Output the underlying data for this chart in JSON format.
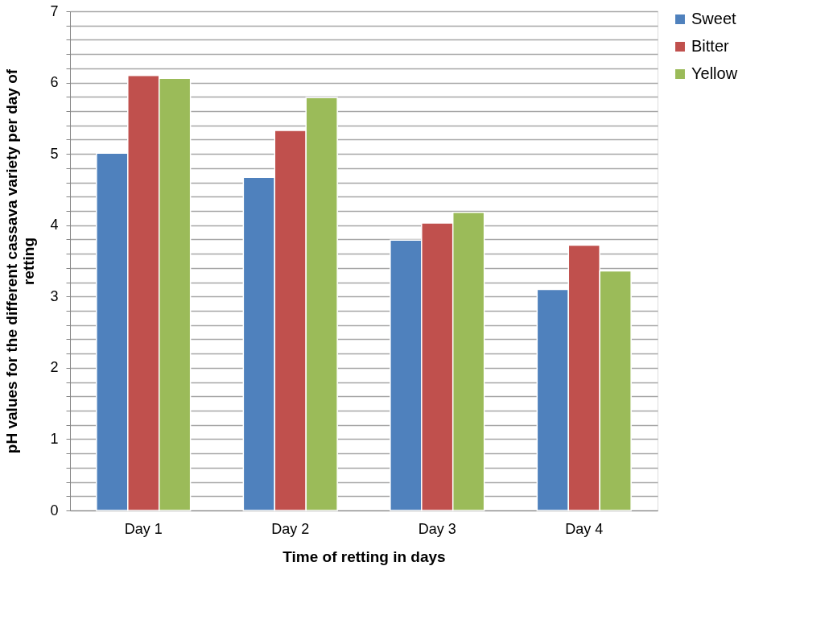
{
  "chart_data": {
    "type": "bar",
    "xlabel": "Time of retting in days",
    "ylabel": "pH values for the different cassava variety per day of retting",
    "categories": [
      "Day 1",
      "Day 2",
      "Day 3",
      "Day 4"
    ],
    "series": [
      {
        "name": "Sweet",
        "color": "#4f81bd",
        "values": [
          5.01,
          4.67,
          3.79,
          3.1
        ]
      },
      {
        "name": "Bitter",
        "color": "#c0504d",
        "values": [
          6.1,
          5.33,
          4.03,
          3.72
        ]
      },
      {
        "name": "Yellow",
        "color": "#9bbb59",
        "values": [
          6.06,
          5.79,
          4.18,
          3.36
        ]
      }
    ],
    "ylim": [
      0,
      7
    ],
    "yticks": [
      0,
      {
        "value": 0.2,
        "label": null
      },
      {
        "value": 0.4,
        "label": null
      },
      {
        "value": 0.6,
        "label": null
      },
      {
        "value": 0.8,
        "label": null
      },
      1,
      {
        "value": 1.2,
        "label": null
      },
      {
        "value": 1.4,
        "label": null
      },
      {
        "value": 1.6,
        "label": null
      },
      {
        "value": 1.8,
        "label": null
      },
      2,
      {
        "value": 2.2,
        "label": null
      },
      {
        "value": 2.4,
        "label": null
      },
      {
        "value": 2.6,
        "label": null
      },
      {
        "value": 2.8,
        "label": null
      },
      3,
      {
        "value": 3.2,
        "label": null
      },
      {
        "value": 3.4,
        "label": null
      },
      {
        "value": 3.6,
        "label": null
      },
      {
        "value": 3.8,
        "label": null
      },
      4,
      {
        "value": 4.2,
        "label": null
      },
      {
        "value": 4.4,
        "label": null
      },
      {
        "value": 4.6,
        "label": null
      },
      {
        "value": 4.8,
        "label": null
      },
      5,
      {
        "value": 5.2,
        "label": null
      },
      {
        "value": 5.4,
        "label": null
      },
      {
        "value": 5.6,
        "label": null
      },
      {
        "value": 5.8,
        "label": null
      },
      6,
      {
        "value": 6.2,
        "label": null
      },
      {
        "value": 6.4,
        "label": null
      },
      {
        "value": 6.6,
        "label": null
      },
      {
        "value": 6.8,
        "label": null
      },
      7
    ],
    "grid": "y",
    "legend": "right"
  }
}
